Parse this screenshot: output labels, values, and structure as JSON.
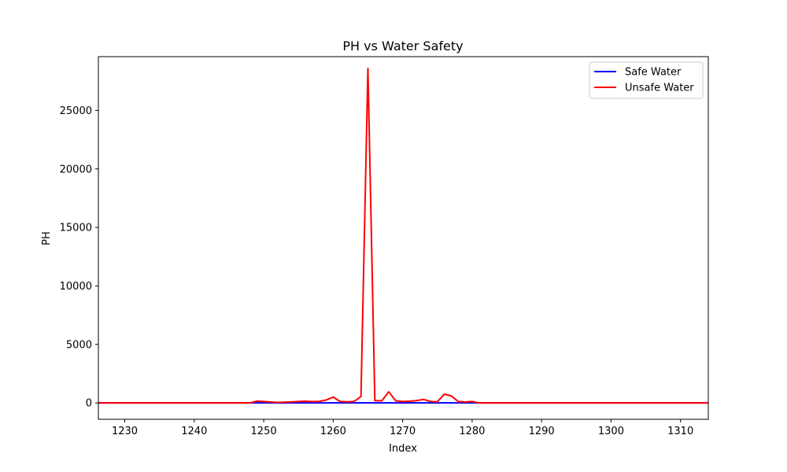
{
  "chart_data": {
    "type": "line",
    "title": "PH vs Water Safety",
    "xlabel": "Index",
    "ylabel": "PH",
    "xlim": [
      1226.2,
      1314
    ],
    "ylim": [
      -1400,
      29600
    ],
    "xticks": [
      1230,
      1240,
      1250,
      1260,
      1270,
      1280,
      1290,
      1300,
      1310
    ],
    "yticks": [
      0,
      5000,
      10000,
      15000,
      20000,
      25000
    ],
    "legend_position": "upper right",
    "grid": false,
    "series": [
      {
        "name": "Safe Water",
        "color": "#0000ff",
        "x": [
          1226,
          1314
        ],
        "y": [
          0,
          0
        ]
      },
      {
        "name": "Unsafe Water",
        "color": "#ff0000",
        "x": [
          1226,
          1248,
          1249,
          1250,
          1251,
          1252,
          1253,
          1254,
          1255,
          1256,
          1257,
          1258,
          1259,
          1260,
          1261,
          1262,
          1263,
          1264,
          1265,
          1266,
          1267,
          1268,
          1269,
          1270,
          1271,
          1272,
          1273,
          1274,
          1275,
          1276,
          1277,
          1278,
          1279,
          1280,
          1281,
          1314
        ],
        "y": [
          0,
          0,
          150,
          120,
          80,
          40,
          60,
          90,
          120,
          150,
          110,
          130,
          250,
          500,
          120,
          100,
          120,
          550,
          28600,
          200,
          180,
          950,
          180,
          120,
          150,
          200,
          300,
          120,
          100,
          750,
          600,
          120,
          80,
          120,
          0,
          0
        ]
      }
    ]
  }
}
